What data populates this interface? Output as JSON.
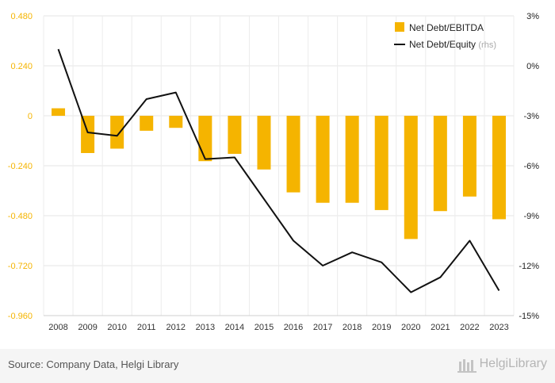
{
  "chart_data": {
    "type": "bar+line",
    "categories": [
      "2008",
      "2009",
      "2010",
      "2011",
      "2012",
      "2013",
      "2014",
      "2015",
      "2016",
      "2017",
      "2018",
      "2019",
      "2020",
      "2021",
      "2022",
      "2023"
    ],
    "series": [
      {
        "name": "Net Debt/EBITDA",
        "type": "bar",
        "axis": "left",
        "color": "#f5b400",
        "values": [
          0.036,
          -0.179,
          -0.158,
          -0.072,
          -0.058,
          -0.218,
          -0.183,
          -0.258,
          -0.368,
          -0.418,
          -0.418,
          -0.453,
          -0.592,
          -0.458,
          -0.388,
          -0.497
        ]
      },
      {
        "name": "Net Debt/Equity",
        "name_suffix": "(rhs)",
        "type": "line",
        "axis": "right",
        "color": "#111111",
        "values": [
          1.0,
          -4.0,
          -4.2,
          -2.0,
          -1.6,
          -5.6,
          -5.5,
          -8.0,
          -10.5,
          -12.0,
          -11.2,
          -11.8,
          -13.6,
          -12.7,
          -10.5,
          -13.5
        ]
      }
    ],
    "y_left": {
      "min": -0.96,
      "max": 0.48,
      "ticks": [
        "0.480",
        "0.240",
        "0",
        "-0.240",
        "-0.480",
        "-0.720",
        "-0.960"
      ],
      "tick_color": "#f5b400"
    },
    "y_right": {
      "min": -15,
      "max": 3,
      "ticks": [
        "3%",
        "0%",
        "-3%",
        "-6%",
        "-9%",
        "-12%",
        "-15%"
      ]
    },
    "grid": true,
    "legend_position": "top-right"
  },
  "footer": {
    "source": "Source: Company Data, Helgi Library",
    "brand": "HelgiLibrary"
  }
}
